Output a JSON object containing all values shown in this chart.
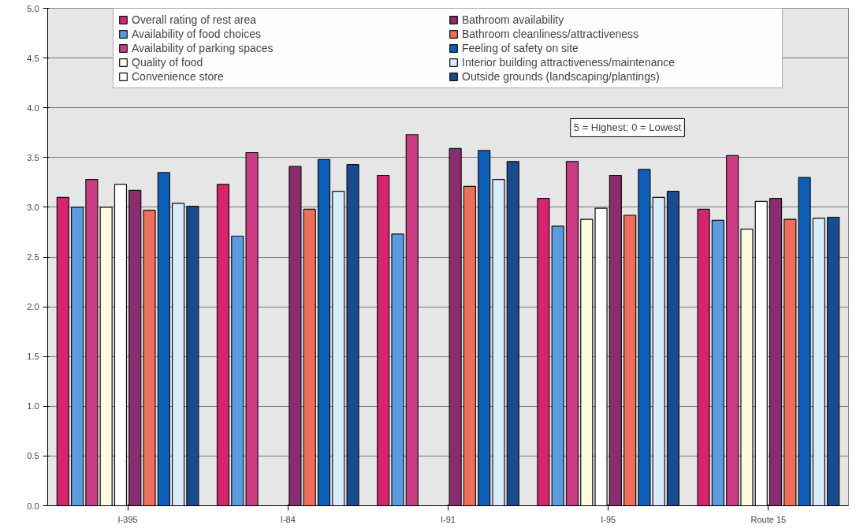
{
  "chart_data": {
    "type": "bar",
    "categories": [
      "I-395",
      "I-84",
      "I-91",
      "I-95",
      "Route 15"
    ],
    "series": [
      {
        "name": "Overall rating of rest area",
        "color": "#d6246e",
        "values": [
          3.1,
          3.23,
          3.32,
          3.09,
          2.98
        ]
      },
      {
        "name": "Availability of food choices",
        "color": "#5b9be0",
        "values": [
          3.0,
          2.71,
          2.73,
          2.81,
          2.87
        ]
      },
      {
        "name": "Availability of parking spaces",
        "color": "#cc3c84",
        "values": [
          3.28,
          3.55,
          3.73,
          3.46,
          3.52
        ]
      },
      {
        "name": "Quality of food",
        "color": "#fffbe0",
        "values": [
          3.0,
          null,
          null,
          2.88,
          2.78
        ]
      },
      {
        "name": "Convenience store",
        "color": "#ffffff",
        "values": [
          3.23,
          null,
          null,
          2.99,
          3.06
        ]
      },
      {
        "name": "Bathroom availability",
        "color": "#8a2d6e",
        "values": [
          3.17,
          3.41,
          3.59,
          3.32,
          3.09
        ]
      },
      {
        "name": "Bathroom cleanliness/attractiveness",
        "color": "#ee6e5a",
        "values": [
          2.97,
          2.98,
          3.21,
          2.92,
          2.88
        ]
      },
      {
        "name": "Feeling of safety on site",
        "color": "#0e5fb8",
        "values": [
          3.35,
          3.48,
          3.57,
          3.38,
          3.3
        ]
      },
      {
        "name": "Interior building attractiveness/maintenance",
        "color": "#d8ecfc",
        "values": [
          3.04,
          3.16,
          3.28,
          3.1,
          2.89
        ]
      },
      {
        "name": "Outside grounds (landscaping/plantings)",
        "color": "#1a4a90",
        "values": [
          3.01,
          3.43,
          3.46,
          3.16,
          2.9
        ]
      }
    ],
    "ylim": [
      0,
      5
    ],
    "yticks": [
      {
        "value": 0,
        "label": "0.0"
      },
      {
        "value": 0.5,
        "label": "0.5"
      },
      {
        "value": 1,
        "label": "1.0"
      },
      {
        "value": 1.5,
        "label": "1.5"
      },
      {
        "value": 2,
        "label": "2.0"
      },
      {
        "value": 2.5,
        "label": "2.5"
      },
      {
        "value": 3,
        "label": "3.0"
      },
      {
        "value": 3.5,
        "label": "3.5"
      },
      {
        "value": 4,
        "label": "4.0"
      },
      {
        "value": 4.5,
        "label": "4.5"
      },
      {
        "value": 5,
        "label": "5.0"
      }
    ],
    "grid": "y",
    "legend": "top",
    "annotations": [
      "5 = Highest; 0 = Lowest"
    ]
  }
}
